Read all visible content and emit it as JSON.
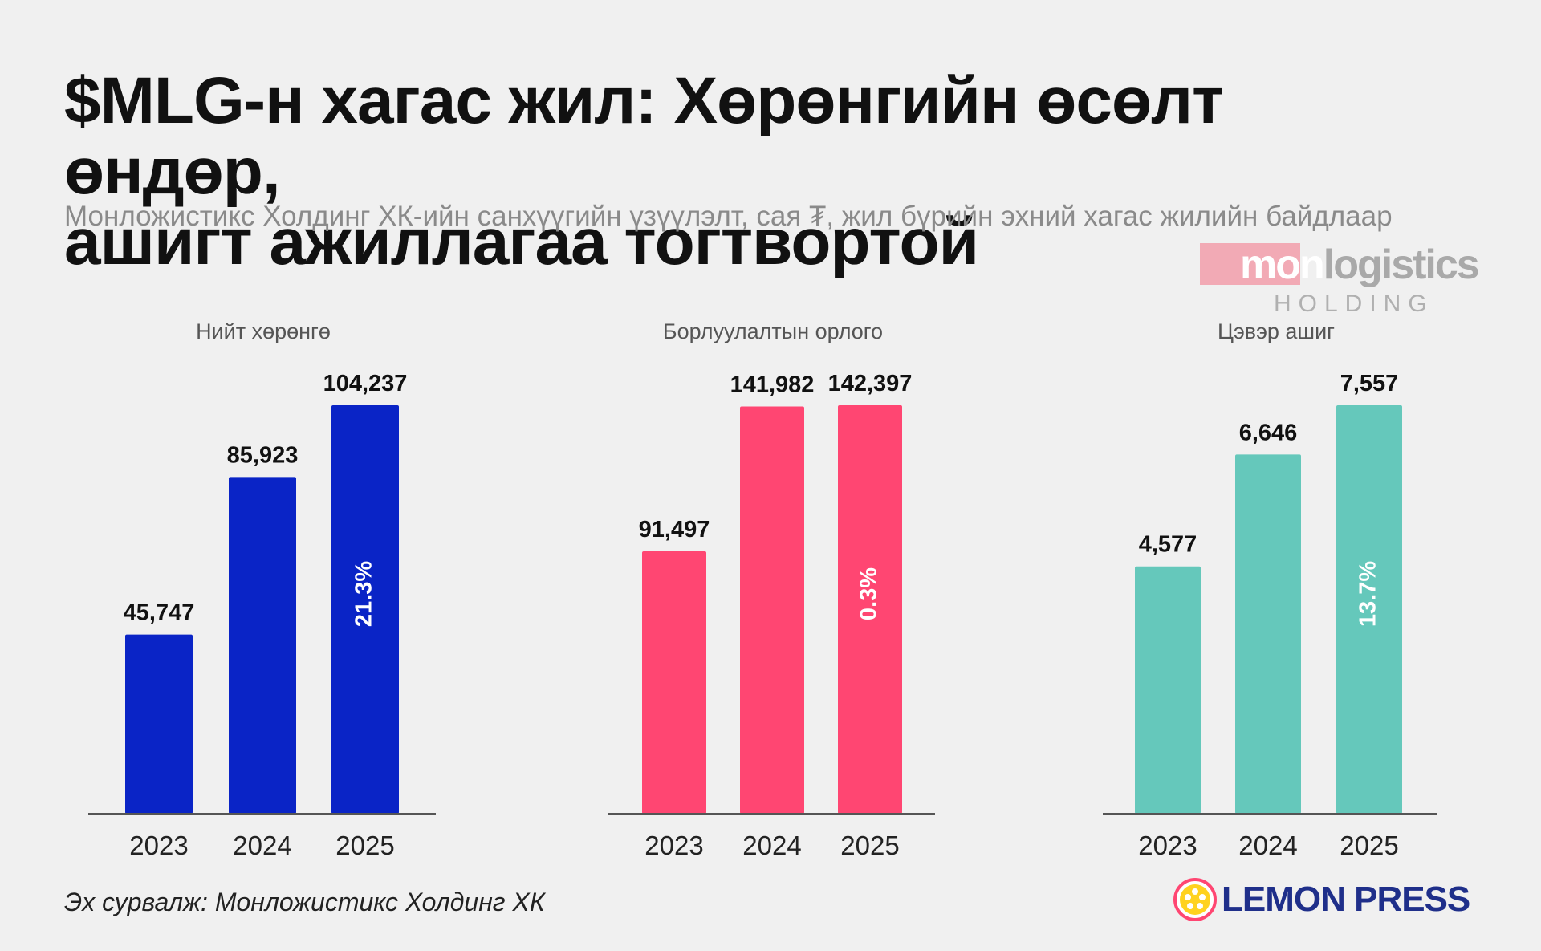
{
  "header": {
    "title_line1": "$MLG-н хагас жил: Хөрөнгийн өсөлт өндөр,",
    "title_line2": "ашигт ажиллагаа тогтвортой",
    "subtitle": "Монложистикс Холдинг ХК-ийн санхүүгийн үзүүлэлт, сая ₮, жил бүрийн эхний хагас жилийн байдлаар"
  },
  "logo": {
    "word_part1": "mon",
    "word_part2": "logistics",
    "sub": "HOLDING"
  },
  "footer": {
    "source": "Эх сурвалж: Монложистикс Холдинг ХК",
    "brand": "LEMON PRESS"
  },
  "colors": {
    "blue": "#0a24c6",
    "pink": "#ff4672",
    "teal": "#65c8bb",
    "background": "#f0f0f0"
  },
  "chart_data": [
    {
      "type": "bar",
      "title": "Нийт хөрөнгө",
      "categories": [
        "2023",
        "2024",
        "2025"
      ],
      "values": [
        45747,
        85923,
        104237
      ],
      "value_labels": [
        "45,747",
        "85,923",
        "104,237"
      ],
      "growth_label": "21.3%",
      "color": "#0a24c6",
      "ylim": [
        0,
        104237
      ]
    },
    {
      "type": "bar",
      "title": "Борлуулалтын орлого",
      "categories": [
        "2023",
        "2024",
        "2025"
      ],
      "values": [
        91497,
        141982,
        142397
      ],
      "value_labels": [
        "91,497",
        "141,982",
        "142,397"
      ],
      "growth_label": "0.3%",
      "color": "#ff4672",
      "ylim": [
        0,
        142397
      ]
    },
    {
      "type": "bar",
      "title": "Цэвэр ашиг",
      "categories": [
        "2023",
        "2024",
        "2025"
      ],
      "values": [
        4577,
        6646,
        7557
      ],
      "value_labels": [
        "4,577",
        "6,646",
        "7,557"
      ],
      "growth_label": "13.7%",
      "color": "#65c8bb",
      "ylim": [
        0,
        7557
      ]
    }
  ]
}
